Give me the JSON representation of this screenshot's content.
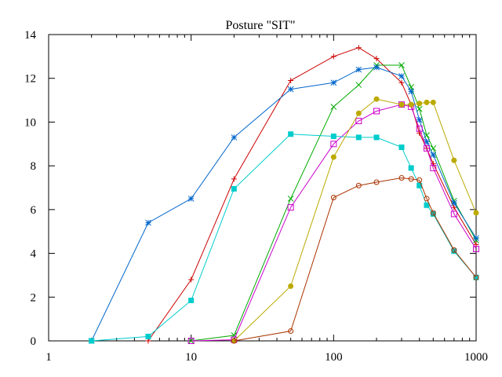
{
  "chart_data": {
    "type": "line",
    "title": "Posture \"SIT\"",
    "xlabel": "",
    "ylabel": "",
    "x_scale": "log",
    "xlim": [
      1,
      1000
    ],
    "ylim": [
      0,
      14
    ],
    "grid": false,
    "legend": "none",
    "x_ticks": [
      {
        "value": 1,
        "label": "1"
      },
      {
        "value": 10,
        "label": "10"
      },
      {
        "value": 100,
        "label": "100"
      },
      {
        "value": 1000,
        "label": "1000"
      }
    ],
    "y_ticks": [
      {
        "value": 0,
        "label": "0"
      },
      {
        "value": 2,
        "label": "2"
      },
      {
        "value": 4,
        "label": "4"
      },
      {
        "value": 6,
        "label": "6"
      },
      {
        "value": 8,
        "label": "8"
      },
      {
        "value": 10,
        "label": "10"
      },
      {
        "value": 12,
        "label": "12"
      },
      {
        "value": 14,
        "label": "14"
      }
    ],
    "series": [
      {
        "color": "#cc0000",
        "marker": "plus",
        "points": [
          [
            5,
            0
          ],
          [
            10,
            2.8
          ],
          [
            20,
            7.4
          ],
          [
            50,
            11.9
          ],
          [
            100,
            13.0
          ],
          [
            150,
            13.4
          ],
          [
            200,
            12.9
          ],
          [
            300,
            11.8
          ],
          [
            350,
            10.8
          ],
          [
            400,
            9.5
          ],
          [
            450,
            8.8
          ],
          [
            500,
            8.1
          ],
          [
            700,
            6.1
          ],
          [
            1000,
            4.4
          ]
        ]
      },
      {
        "color": "#00aa00",
        "marker": "cross",
        "points": [
          [
            10,
            0
          ],
          [
            20,
            0.25
          ],
          [
            50,
            6.5
          ],
          [
            100,
            10.7
          ],
          [
            150,
            11.7
          ],
          [
            200,
            12.6
          ],
          [
            300,
            12.6
          ],
          [
            350,
            11.6
          ],
          [
            400,
            10.6
          ],
          [
            450,
            9.4
          ],
          [
            500,
            8.8
          ],
          [
            700,
            6.4
          ],
          [
            1000,
            4.6
          ]
        ]
      },
      {
        "color": "#0066cc",
        "marker": "star",
        "points": [
          [
            2,
            0
          ],
          [
            5,
            5.4
          ],
          [
            10,
            6.5
          ],
          [
            20,
            9.3
          ],
          [
            50,
            11.5
          ],
          [
            100,
            11.8
          ],
          [
            150,
            12.4
          ],
          [
            200,
            12.5
          ],
          [
            300,
            12.1
          ],
          [
            350,
            11.4
          ],
          [
            400,
            10.1
          ],
          [
            450,
            9.1
          ],
          [
            500,
            8.5
          ],
          [
            700,
            6.3
          ],
          [
            1000,
            4.7
          ]
        ]
      },
      {
        "color": "#cc00cc",
        "marker": "square-open",
        "points": [
          [
            10,
            0
          ],
          [
            20,
            0.05
          ],
          [
            50,
            6.1
          ],
          [
            100,
            9.0
          ],
          [
            150,
            10.05
          ],
          [
            200,
            10.5
          ],
          [
            300,
            10.8
          ],
          [
            350,
            10.7
          ],
          [
            400,
            9.7
          ],
          [
            450,
            8.8
          ],
          [
            500,
            7.9
          ],
          [
            700,
            5.8
          ],
          [
            1000,
            4.2
          ]
        ]
      },
      {
        "color": "#00cccc",
        "marker": "square-filled",
        "points": [
          [
            2,
            0
          ],
          [
            5,
            0.2
          ],
          [
            10,
            1.85
          ],
          [
            20,
            6.95
          ],
          [
            50,
            9.45
          ],
          [
            100,
            9.35
          ],
          [
            150,
            9.3
          ],
          [
            200,
            9.3
          ],
          [
            300,
            8.85
          ],
          [
            350,
            7.9
          ],
          [
            400,
            7.1
          ],
          [
            450,
            6.2
          ],
          [
            500,
            5.8
          ],
          [
            700,
            4.1
          ],
          [
            1000,
            2.9
          ]
        ]
      },
      {
        "color": "#bbaa00",
        "marker": "circle-filled",
        "points": [
          [
            20,
            0
          ],
          [
            50,
            2.5
          ],
          [
            100,
            8.4
          ],
          [
            150,
            10.4
          ],
          [
            200,
            11.05
          ],
          [
            300,
            10.8
          ],
          [
            350,
            10.8
          ],
          [
            400,
            10.85
          ],
          [
            450,
            10.9
          ],
          [
            500,
            10.9
          ],
          [
            700,
            8.25
          ],
          [
            1000,
            5.85
          ]
        ]
      },
      {
        "color": "#aa3300",
        "marker": "circle-open",
        "points": [
          [
            20,
            0
          ],
          [
            50,
            0.45
          ],
          [
            100,
            6.55
          ],
          [
            150,
            7.1
          ],
          [
            200,
            7.25
          ],
          [
            300,
            7.45
          ],
          [
            350,
            7.4
          ],
          [
            400,
            7.35
          ],
          [
            450,
            6.5
          ],
          [
            500,
            5.85
          ],
          [
            700,
            4.15
          ],
          [
            1000,
            2.9
          ]
        ]
      }
    ]
  }
}
